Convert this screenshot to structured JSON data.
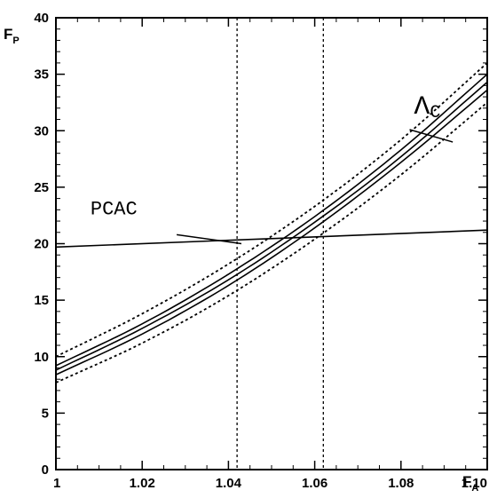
{
  "chart_data": {
    "type": "line",
    "xlabel": "F",
    "xlabel_sub": "A",
    "ylabel": "F",
    "ylabel_sub": "P",
    "xlim": [
      1.0,
      1.1
    ],
    "ylim": [
      0,
      40
    ],
    "x_ticks": [
      "1",
      "1.02",
      "1.04",
      "1.06",
      "1.08",
      "1.10"
    ],
    "y_ticks": [
      "0",
      "5",
      "10",
      "15",
      "20",
      "25",
      "30",
      "35",
      "40"
    ],
    "grid": false,
    "series": [
      {
        "name": "",
        "style": "dotted",
        "x": [
          1.0,
          1.02,
          1.04,
          1.06,
          1.08,
          1.1
        ],
        "y": [
          10.0,
          13.8,
          18.2,
          23.3,
          29.2,
          36.0
        ]
      },
      {
        "name": "",
        "style": "solid",
        "x": [
          1.0,
          1.02,
          1.04,
          1.06,
          1.08,
          1.1
        ],
        "y": [
          9.2,
          12.9,
          17.3,
          22.4,
          28.3,
          35.0
        ]
      },
      {
        "name": "",
        "style": "solid",
        "x": [
          1.0,
          1.02,
          1.04,
          1.06,
          1.08,
          1.1
        ],
        "y": [
          8.8,
          12.5,
          16.8,
          21.9,
          27.7,
          34.3
        ]
      },
      {
        "name": "",
        "style": "solid",
        "x": [
          1.0,
          1.02,
          1.04,
          1.06,
          1.08,
          1.1
        ],
        "y": [
          8.4,
          12.0,
          16.3,
          21.4,
          27.2,
          33.6
        ]
      },
      {
        "name": "",
        "style": "dotted",
        "x": [
          1.0,
          1.02,
          1.04,
          1.06,
          1.08,
          1.1
        ],
        "y": [
          7.7,
          11.2,
          15.4,
          20.4,
          26.1,
          32.5
        ]
      },
      {
        "name": "",
        "style": "solid",
        "x": [
          1.0,
          1.1
        ],
        "y": [
          19.7,
          21.2
        ]
      }
    ],
    "vertical_lines": [
      {
        "x": 1.042,
        "style": "dotted"
      },
      {
        "x": 1.062,
        "style": "dotted"
      }
    ],
    "annotations": [
      {
        "text": "PCAC",
        "x": 1.008,
        "y": 22.6,
        "pointer_from": [
          1.028,
          20.8
        ],
        "pointer_to": [
          1.043,
          20.0
        ]
      },
      {
        "text": "Λ",
        "sub": "C",
        "x": 1.083,
        "y": 31.5,
        "pointer_from": [
          1.082,
          30.1
        ],
        "pointer_to": [
          1.092,
          29.0
        ]
      }
    ]
  }
}
